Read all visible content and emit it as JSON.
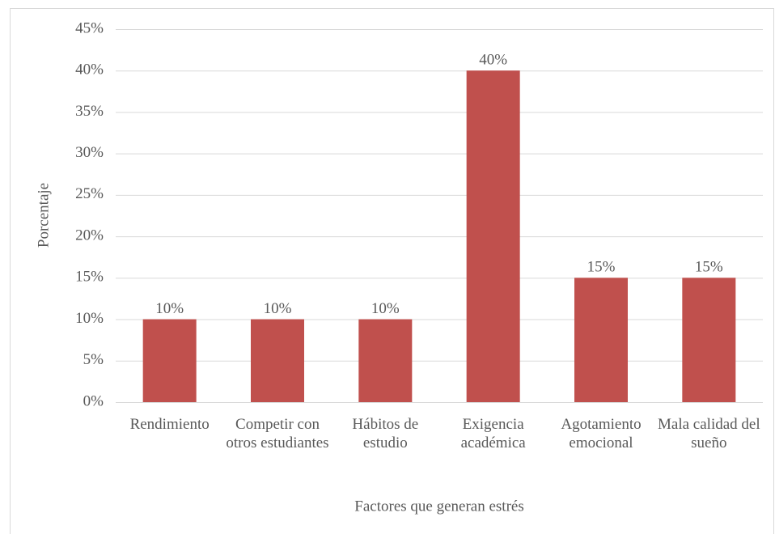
{
  "chart_data": {
    "type": "bar",
    "categories": [
      "Rendimiento",
      "Competir con otros estudiantes",
      "Hábitos de estudio",
      "Exigencia académica",
      "Agotamiento emocional",
      "Mala calidad del sueño"
    ],
    "values": [
      10,
      10,
      10,
      40,
      15,
      15
    ],
    "value_labels": [
      "10%",
      "10%",
      "10%",
      "40%",
      "15%",
      "15%"
    ],
    "color": "#c0504d",
    "x_label": "Factores que generan estrés",
    "y_label": "Porcentaje",
    "ylim": [
      0,
      45
    ],
    "yticks": [
      {
        "value": 0,
        "label": "0%"
      },
      {
        "value": 5,
        "label": "5%"
      },
      {
        "value": 10,
        "label": "10%"
      },
      {
        "value": 15,
        "label": "15%"
      },
      {
        "value": 20,
        "label": "20%"
      },
      {
        "value": 25,
        "label": "25%"
      },
      {
        "value": 30,
        "label": "30%"
      },
      {
        "value": 35,
        "label": "35%"
      },
      {
        "value": 40,
        "label": "40%"
      },
      {
        "value": 45,
        "label": "45%"
      }
    ],
    "grid": true
  }
}
